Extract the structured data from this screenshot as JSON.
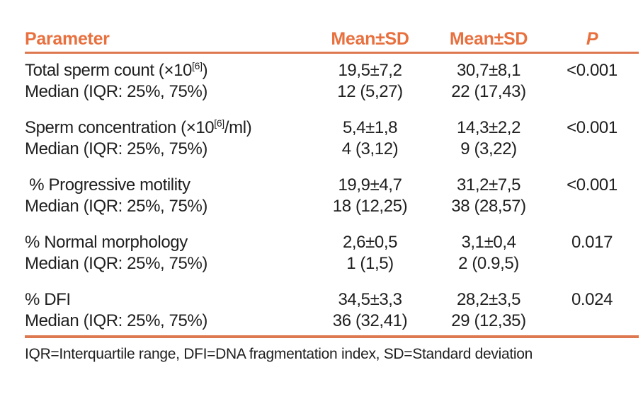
{
  "colors": {
    "accent": "#e8703f",
    "rule": "#dd7850",
    "text": "#1f1f1f"
  },
  "header": {
    "parameter": "Parameter",
    "mean_sd_1": "Mean±SD",
    "mean_sd_2": "Mean±SD",
    "p": "P"
  },
  "rows": [
    {
      "param_pre": "Total sperm count (×10",
      "param_sup": "[6]",
      "param_post": ")",
      "mean1": "19,5±7,2",
      "mean2": "30,7±8,1",
      "p": "<0.001",
      "median_label": "Median (IQR: 25%, 75%)",
      "median1": "12 (5,27)",
      "median2": "22 (17,43)"
    },
    {
      "param_pre": "Sperm concentration (×10",
      "param_sup": "[6]",
      "param_post": "/ml)",
      "mean1": "5,4±1,8",
      "mean2": "14,3±2,2",
      "p": "<0.001",
      "median_label": "Median (IQR: 25%, 75%)",
      "median1": "4 (3,12)",
      "median2": "9 (3,22)"
    },
    {
      "param_pre": " % Progressive motility",
      "param_sup": "",
      "param_post": "",
      "mean1": "19,9±4,7",
      "mean2": "31,2±7,5",
      "p": "<0.001",
      "median_label": "Median (IQR: 25%, 75%)",
      "median1": "18 (12,25)",
      "median2": "38 (28,57)"
    },
    {
      "param_pre": "% Normal morphology",
      "param_sup": "",
      "param_post": "",
      "mean1": "2,6±0,5",
      "mean2": "3,1±0,4",
      "p": "0.017",
      "median_label": "Median (IQR: 25%, 75%)",
      "median1": "1 (1,5)",
      "median2": "2 (0.9,5)"
    },
    {
      "param_pre": "% DFI",
      "param_sup": "",
      "param_post": "",
      "mean1": "34,5±3,3",
      "mean2": "28,2±3,5",
      "p": "0.024",
      "median_label": "Median (IQR: 25%, 75%)",
      "median1": "36 (32,41)",
      "median2": "29 (12,35)"
    }
  ],
  "footnote": "IQR=Interquartile range, DFI=DNA fragmentation index, SD=Standard deviation"
}
